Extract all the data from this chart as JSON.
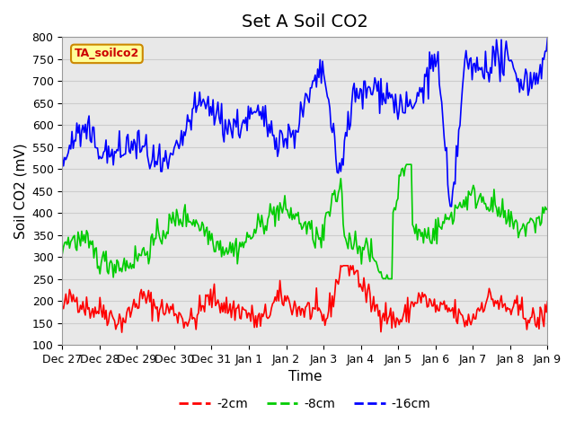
{
  "title": "Set A Soil CO2",
  "ylabel": "Soil CO2 (mV)",
  "xlabel": "Time",
  "legend_label": "TA_soilco2",
  "series_labels": [
    "-2cm",
    "-8cm",
    "-16cm"
  ],
  "colors": [
    "#ff0000",
    "#00cc00",
    "#0000ff"
  ],
  "ylim": [
    100,
    800
  ],
  "yticks": [
    100,
    150,
    200,
    250,
    300,
    350,
    400,
    450,
    500,
    550,
    600,
    650,
    700,
    750,
    800
  ],
  "grid_color": "#cccccc",
  "bg_color": "#e8e8e8",
  "legend_box_color": "#ffff99",
  "legend_box_edge": "#cc8800",
  "title_fontsize": 14,
  "axis_fontsize": 11,
  "tick_label_fontsize": 9,
  "line_width": 1.2,
  "xtick_labels": [
    "Dec 27",
    "Dec 28",
    "Dec 29",
    "Dec 30",
    "Dec 31",
    "Jan 1",
    "Jan 2",
    "Jan 3",
    "Jan 4",
    "Jan 5",
    "Jan 6",
    "Jan 7",
    "Jan 8",
    "Jan 9"
  ],
  "xtick_positions": [
    0,
    1,
    2,
    3,
    4,
    5,
    6,
    7,
    8,
    9,
    10,
    11,
    12,
    13
  ]
}
